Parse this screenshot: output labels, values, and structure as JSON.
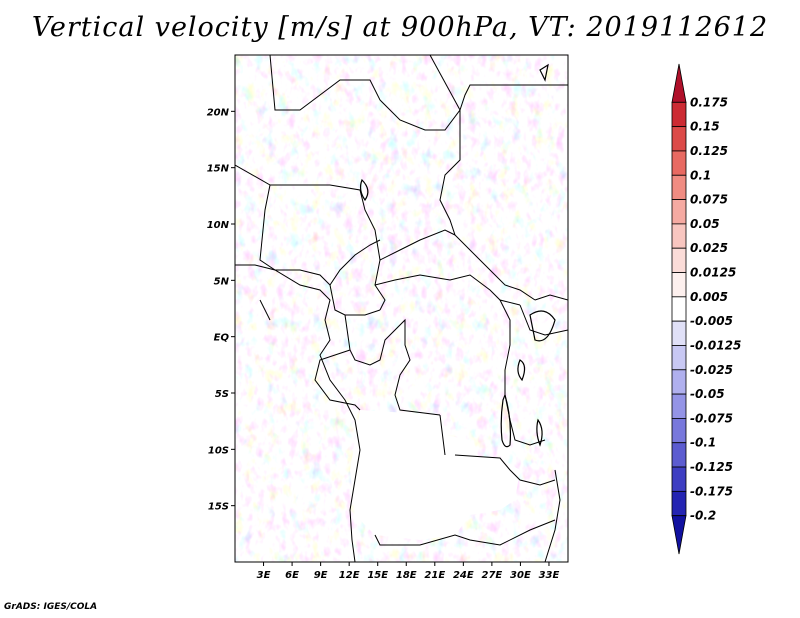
{
  "title": "Vertical velocity [m/s] at 900hPa, VT: 2019112612",
  "footer": "GrADS: IGES/COLA",
  "map": {
    "lat_labels": [
      "20N",
      "15N",
      "10N",
      "5N",
      "EQ",
      "5S",
      "10S",
      "15S"
    ],
    "lat_values": [
      20,
      15,
      10,
      5,
      0,
      -5,
      -10,
      -15
    ],
    "lon_labels": [
      "3E",
      "6E",
      "9E",
      "12E",
      "15E",
      "18E",
      "21E",
      "24E",
      "27E",
      "30E",
      "33E"
    ],
    "lon_values": [
      3,
      6,
      9,
      12,
      15,
      18,
      21,
      24,
      27,
      30,
      33
    ],
    "lat_range": [
      -20,
      25
    ],
    "lon_range": [
      0,
      35
    ]
  },
  "colorbar": {
    "labels": [
      "0.175",
      "0.15",
      "0.125",
      "0.1",
      "0.075",
      "0.05",
      "0.025",
      "0.0125",
      "0.005",
      "-0.005",
      "-0.0125",
      "-0.025",
      "-0.05",
      "-0.075",
      "-0.1",
      "-0.125",
      "-0.175",
      "-0.2"
    ],
    "colors": [
      "#b0102a",
      "#cc2b33",
      "#dc4a48",
      "#e86a62",
      "#f08c82",
      "#f5aaa2",
      "#f8c6c0",
      "#fbdcd8",
      "#fdf0ee",
      "#ffffff",
      "#e0e0f7",
      "#c8c8f3",
      "#b0b0ee",
      "#9494e6",
      "#7878dc",
      "#5c5cd0",
      "#3e3ec2",
      "#2424b2",
      "#1111a0"
    ]
  }
}
